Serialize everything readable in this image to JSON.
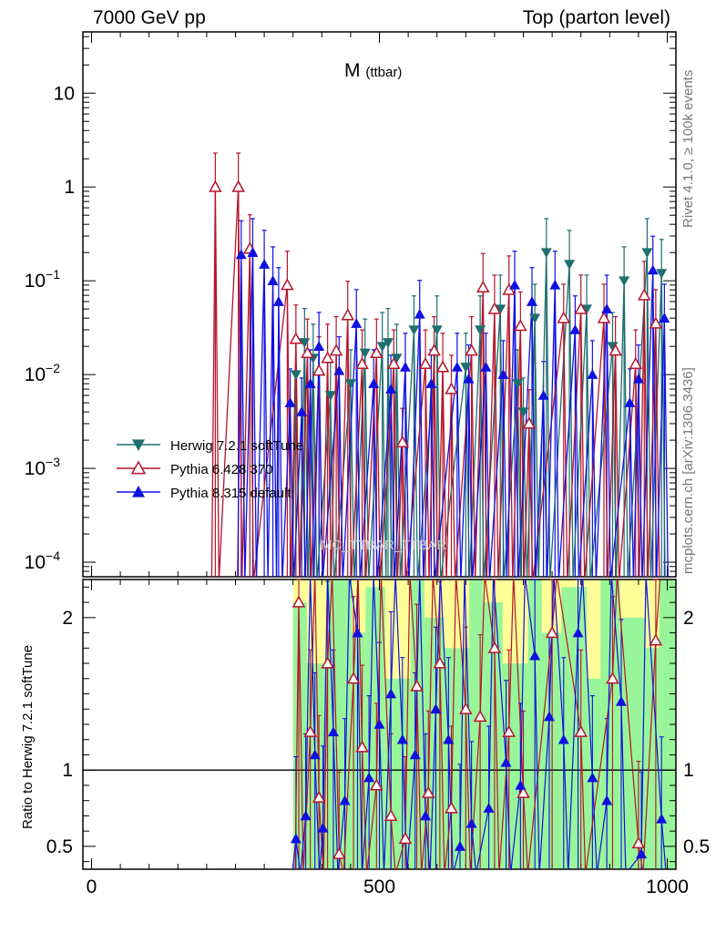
{
  "header": {
    "left": "7000 GeV pp",
    "right": "Top (parton level)"
  },
  "plot_title": {
    "main": "M",
    "sub": "(ttbar)"
  },
  "side_labels": {
    "rivet": "Rivet 4.1.0, ≥ 100k events",
    "source": "mcplots.cern.ch [arXiv:1306.3436]"
  },
  "watermark": "MC_TTBAR_TTBAR",
  "ratio_ylabel": "Ratio to Herwig 7.2.1 softTune",
  "colors": {
    "herwig": "#1f6e6e",
    "pythia6": "#b5152b",
    "pythia8": "#1010e0",
    "band_green": "#99f59a",
    "band_yellow": "#ffff99"
  },
  "chart_data": [
    {
      "type": "line",
      "title": "M (ttbar)",
      "xlabel": "",
      "ylabel": "",
      "yscale": "log",
      "xlim": [
        -15,
        1015
      ],
      "ylim": [
        7e-05,
        45
      ],
      "xticks": [
        0,
        500,
        1000
      ],
      "yticks": [
        {
          "v": 0.0001,
          "base": "10",
          "exp": "−4"
        },
        {
          "v": 0.001,
          "base": "10",
          "exp": "−3"
        },
        {
          "v": 0.01,
          "base": "10",
          "exp": "−2"
        },
        {
          "v": 0.1,
          "base": "10",
          "exp": "−1"
        },
        {
          "v": 1,
          "base": "1",
          "exp": ""
        },
        {
          "v": 10,
          "base": "10",
          "exp": ""
        }
      ],
      "legend": [
        "Herwig 7.2.1 softTune",
        "Pythia 6.428 370",
        "Pythia 8.315 default"
      ],
      "series": [
        {
          "name": "Herwig 7.2.1 softTune",
          "marker": "triangle-down",
          "points": [
            [
              355,
              0.01
            ],
            [
              370,
              0.022
            ],
            [
              385,
              0.015
            ],
            [
              415,
              0.006
            ],
            [
              450,
              0.008
            ],
            [
              475,
              0.017
            ],
            [
              505,
              0.02
            ],
            [
              515,
              0.022
            ],
            [
              530,
              0.015
            ],
            [
              560,
              0.03
            ],
            [
              600,
              0.03
            ],
            [
              650,
              0.012
            ],
            [
              675,
              0.03
            ],
            [
              710,
              0.05
            ],
            [
              740,
              0.008
            ],
            [
              750,
              0.004
            ],
            [
              770,
              0.04
            ],
            [
              790,
              0.2
            ],
            [
              830,
              0.15
            ],
            [
              860,
              0.05
            ],
            [
              905,
              0.02
            ],
            [
              925,
              0.1
            ],
            [
              965,
              0.2
            ],
            [
              990,
              0.12
            ]
          ]
        },
        {
          "name": "Pythia 6.428 370",
          "marker": "triangle-open",
          "points": [
            [
              215,
              1.0
            ],
            [
              255,
              1.0
            ],
            [
              275,
              0.22
            ],
            [
              340,
              0.09
            ],
            [
              355,
              0.024
            ],
            [
              375,
              0.017
            ],
            [
              395,
              0.011
            ],
            [
              410,
              0.015
            ],
            [
              425,
              0.018
            ],
            [
              445,
              0.043
            ],
            [
              470,
              0.013
            ],
            [
              495,
              0.017
            ],
            [
              525,
              0.013
            ],
            [
              540,
              0.0019
            ],
            [
              580,
              0.013
            ],
            [
              595,
              0.018
            ],
            [
              610,
              0.012
            ],
            [
              625,
              0.007
            ],
            [
              660,
              0.018
            ],
            [
              680,
              0.085
            ],
            [
              700,
              0.05
            ],
            [
              725,
              0.08
            ],
            [
              745,
              0.033
            ],
            [
              760,
              0.003
            ],
            [
              820,
              0.04
            ],
            [
              850,
              0.05
            ],
            [
              890,
              0.04
            ],
            [
              910,
              0.018
            ],
            [
              945,
              0.013
            ],
            [
              960,
              0.07
            ],
            [
              980,
              0.035
            ]
          ]
        },
        {
          "name": "Pythia 8.315 default",
          "marker": "triangle-filled",
          "points": [
            [
              260,
              0.19
            ],
            [
              280,
              0.2
            ],
            [
              300,
              0.15
            ],
            [
              315,
              0.1
            ],
            [
              325,
              0.06
            ],
            [
              345,
              0.005
            ],
            [
              365,
              0.004
            ],
            [
              380,
              0.008
            ],
            [
              395,
              0.02
            ],
            [
              430,
              0.011
            ],
            [
              460,
              0.035
            ],
            [
              490,
              0.008
            ],
            [
              520,
              0.007
            ],
            [
              545,
              0.012
            ],
            [
              570,
              0.044
            ],
            [
              590,
              0.008
            ],
            [
              635,
              0.012
            ],
            [
              655,
              0.009
            ],
            [
              685,
              0.012
            ],
            [
              715,
              0.01
            ],
            [
              735,
              0.09
            ],
            [
              765,
              0.06
            ],
            [
              785,
              0.006
            ],
            [
              805,
              0.09
            ],
            [
              840,
              0.03
            ],
            [
              870,
              0.01
            ],
            [
              895,
              0.05
            ],
            [
              935,
              0.005
            ],
            [
              950,
              0.009
            ],
            [
              975,
              0.13
            ],
            [
              995,
              0.04
            ]
          ]
        }
      ]
    },
    {
      "type": "line",
      "title": "",
      "xlabel": "",
      "ylabel": "Ratio to Herwig 7.2.1 softTune",
      "xlim": [
        -15,
        1015
      ],
      "ylim": [
        0.35,
        2.25
      ],
      "xticks": [
        0,
        500,
        1000
      ],
      "yticks": [
        0.5,
        1,
        2
      ],
      "reference_line": 1,
      "band_xrange": [
        350,
        1000
      ],
      "series": [
        {
          "name": "Pythia 6.428 370",
          "marker": "triangle-open",
          "points": [
            [
              360,
              2.1
            ],
            [
              380,
              1.25
            ],
            [
              395,
              0.82
            ],
            [
              410,
              1.7
            ],
            [
              430,
              0.45
            ],
            [
              455,
              1.6
            ],
            [
              470,
              1.15
            ],
            [
              495,
              0.9
            ],
            [
              520,
              0.7
            ],
            [
              545,
              0.55
            ],
            [
              565,
              1.55
            ],
            [
              585,
              0.85
            ],
            [
              605,
              1.7
            ],
            [
              625,
              0.75
            ],
            [
              650,
              1.4
            ],
            [
              675,
              1.35
            ],
            [
              700,
              1.8
            ],
            [
              725,
              1.25
            ],
            [
              750,
              0.85
            ],
            [
              800,
              1.9
            ],
            [
              850,
              1.25
            ],
            [
              905,
              1.6
            ],
            [
              950,
              0.52
            ],
            [
              980,
              1.85
            ]
          ]
        },
        {
          "name": "Pythia 8.315 default",
          "marker": "triangle-filled",
          "points": [
            [
              355,
              0.55
            ],
            [
              372,
              0.7
            ],
            [
              388,
              1.1
            ],
            [
              402,
              0.62
            ],
            [
              420,
              1.25
            ],
            [
              440,
              0.8
            ],
            [
              462,
              1.9
            ],
            [
              482,
              0.95
            ],
            [
              500,
              1.3
            ],
            [
              520,
              1.5
            ],
            [
              540,
              1.2
            ],
            [
              562,
              1.1
            ],
            [
              580,
              0.7
            ],
            [
              598,
              1.4
            ],
            [
              620,
              1.2
            ],
            [
              640,
              0.5
            ],
            [
              660,
              0.65
            ],
            [
              690,
              0.75
            ],
            [
              720,
              1.05
            ],
            [
              745,
              0.9
            ],
            [
              770,
              1.75
            ],
            [
              795,
              1.35
            ],
            [
              820,
              1.2
            ],
            [
              845,
              1.9
            ],
            [
              870,
              0.95
            ],
            [
              895,
              0.8
            ],
            [
              920,
              1.45
            ],
            [
              955,
              0.45
            ],
            [
              990,
              0.68
            ]
          ]
        }
      ]
    }
  ]
}
